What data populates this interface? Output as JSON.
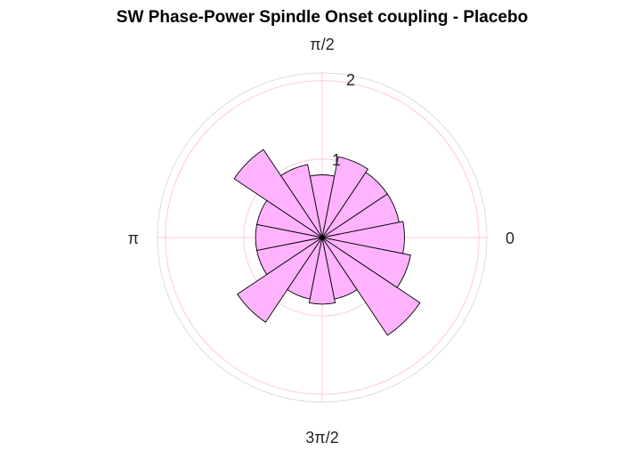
{
  "chart_data": {
    "type": "polar_histogram",
    "title": "SW Phase-Power Spindle Onset coupling - Placebo",
    "bin_count": 16,
    "bin_start_angle_deg": -11.25,
    "values": [
      1.05,
      1.0,
      1.0,
      1.05,
      0.8,
      0.95,
      1.35,
      0.85,
      0.85,
      0.85,
      1.3,
      0.8,
      0.85,
      0.8,
      1.5,
      1.15
    ],
    "theta_tick_labels": [
      "0",
      "π/2",
      "π",
      "3π/2"
    ],
    "r_ticks": [
      "1",
      "2"
    ],
    "rlim": [
      0,
      2.1
    ],
    "grid": true,
    "colors": {
      "bar_fill": "#ffb3ff",
      "bar_edge": "#000000",
      "grid_circle": "#ffc8dc",
      "outer_ring": "#dddddd",
      "spoke": "#ffc8dc"
    }
  }
}
